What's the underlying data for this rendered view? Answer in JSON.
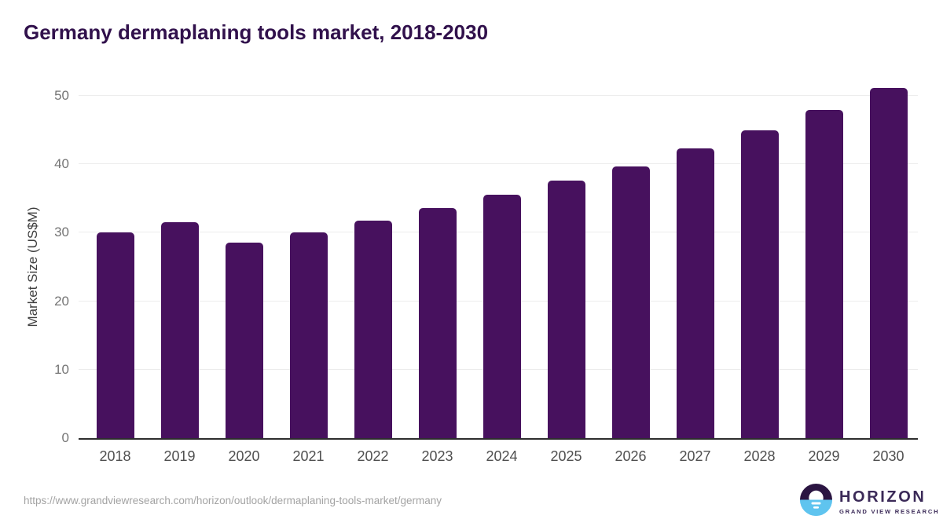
{
  "title": "Germany dermaplaning tools market, 2018-2030",
  "chart_data": {
    "type": "bar",
    "categories": [
      "2018",
      "2019",
      "2020",
      "2021",
      "2022",
      "2023",
      "2024",
      "2025",
      "2026",
      "2027",
      "2028",
      "2029",
      "2030"
    ],
    "values": [
      30.0,
      31.5,
      28.6,
      30.1,
      31.8,
      33.6,
      35.5,
      37.6,
      39.7,
      42.3,
      45.0,
      47.9,
      51.2
    ],
    "title": "Germany dermaplaning tools market, 2018-2030",
    "xlabel": "",
    "ylabel": "Market Size (US$M)",
    "ylim": [
      0,
      50
    ],
    "yticks": [
      0,
      10,
      20,
      30,
      40,
      50
    ],
    "grid": true,
    "legend": "none",
    "bar_color": "#47115e"
  },
  "footer": {
    "source_url": "https://www.grandviewresearch.com/horizon/outlook/dermaplaning-tools-market/germany",
    "logo": {
      "name": "HORIZON",
      "sub": "GRAND VIEW RESEARCH",
      "icon": "sun-over-horizon-icon"
    }
  },
  "colors": {
    "bar": "#47115e",
    "title_text": "#31114c",
    "axis_line": "#2e2e2e",
    "gridline": "#ececec",
    "tick_text": "#757575",
    "xtick_text": "#4f4f4f",
    "url_text": "#a3a3a3",
    "logo_text": "#3b2a58",
    "logo_icon_dark": "#2b1542",
    "logo_icon_blue": "#5fc4ef"
  }
}
